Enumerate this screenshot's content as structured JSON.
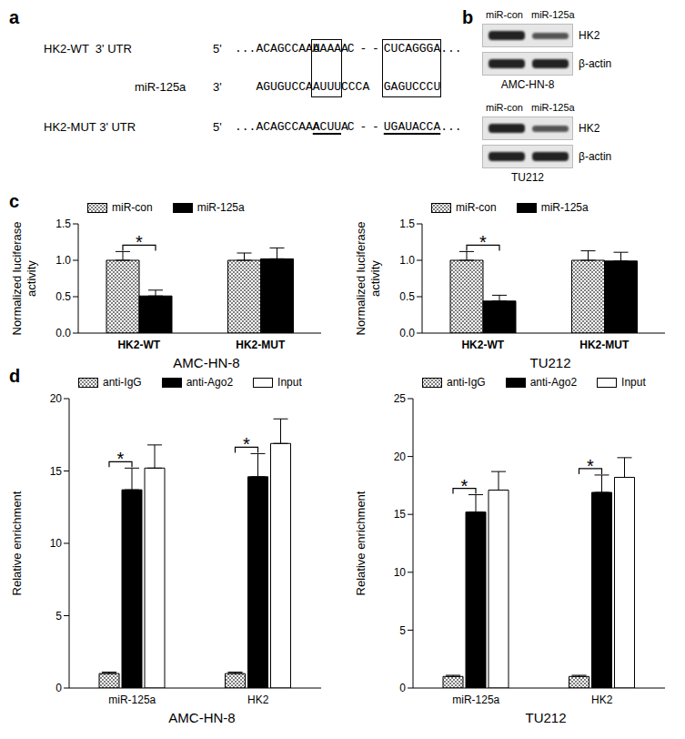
{
  "panel_labels": [
    "a",
    "b",
    "c",
    "d"
  ],
  "panel_a": {
    "rows": [
      {
        "label": "HK2-WT  3' UTR",
        "end": "5'",
        "segments": [
          {
            "text": "...ACAGCCAAA"
          },
          {
            "text": "UAAA",
            "boxed": true
          },
          {
            "text": "AC - -"
          },
          {
            "text": "CUCAGGGA",
            "boxed": true
          },
          {
            "text": "..."
          }
        ]
      },
      {
        "label": "miR-125a",
        "end": "3'",
        "segments": [
          {
            "text": "AGUGUCCA"
          },
          {
            "text": "AUUU",
            "boxed": true
          },
          {
            "text": "CCCA"
          },
          {
            "text": "GAGUCCCU",
            "boxed": true
          }
        ]
      },
      {
        "label": "HK2-MUT 3' UTR",
        "end": "5'",
        "segments": [
          {
            "text": "...ACAGCCAAA"
          },
          {
            "text": "ACUU",
            "underlined": true
          },
          {
            "text": "AC - -"
          },
          {
            "text": "UGAUACCA",
            "underlined": true
          },
          {
            "text": "..."
          }
        ]
      }
    ]
  },
  "panel_b": {
    "lanes": [
      "miR-con",
      "miR-125a"
    ],
    "blots": [
      {
        "cell_line": "AMC-HN-8",
        "bands": [
          "HK2",
          "β-actin"
        ]
      },
      {
        "cell_line": "TU212",
        "bands": [
          "HK2",
          "β-actin"
        ]
      }
    ]
  },
  "chart_data": [
    {
      "type": "bar",
      "title": "AMC-HN-8",
      "y_label": "Normalized luciferase activity",
      "categories": [
        "HK2-WT",
        "HK2-MUT"
      ],
      "series": [
        {
          "name": "miR-con",
          "color": "#7f7f7f",
          "values": [
            1.0,
            1.0
          ],
          "errors": [
            0.12,
            0.1
          ]
        },
        {
          "name": "miR-125a",
          "color": "#000000",
          "values": [
            0.51,
            1.02
          ],
          "errors": [
            0.08,
            0.15
          ]
        }
      ],
      "ylim": [
        0,
        1.5
      ],
      "yticks": [
        {
          "value": 0,
          "label": "0.0"
        },
        {
          "value": 0.5,
          "label": "0.5"
        },
        {
          "value": 1,
          "label": "1.0"
        },
        {
          "value": 1.5,
          "label": "1.5"
        }
      ],
      "legend": "top",
      "grid": false,
      "annotations": [
        {
          "text": "*",
          "category": "HK2-WT"
        }
      ]
    },
    {
      "type": "bar",
      "title": "TU212",
      "y_label": "Normalized luciferase activity",
      "categories": [
        "HK2-WT",
        "HK2-MUT"
      ],
      "series": [
        {
          "name": "miR-con",
          "color": "#7f7f7f",
          "values": [
            1.0,
            1.0
          ],
          "errors": [
            0.12,
            0.13
          ]
        },
        {
          "name": "miR-125a",
          "color": "#000000",
          "values": [
            0.44,
            0.99
          ],
          "errors": [
            0.08,
            0.12
          ]
        }
      ],
      "ylim": [
        0,
        1.5
      ],
      "yticks": [
        {
          "value": 0,
          "label": "0.0"
        },
        {
          "value": 0.5,
          "label": "0.5"
        },
        {
          "value": 1,
          "label": "1.0"
        },
        {
          "value": 1.5,
          "label": "1.5"
        }
      ],
      "legend": "top",
      "grid": false,
      "annotations": [
        {
          "text": "*",
          "category": "HK2-WT"
        }
      ]
    },
    {
      "type": "bar",
      "title": "AMC-HN-8",
      "y_label": "Relative enrichment",
      "categories": [
        "miR-125a",
        "HK2"
      ],
      "series": [
        {
          "name": "anti-IgG",
          "color": "#7f7f7f",
          "values": [
            1.0,
            1.0
          ],
          "errors": [
            0.1,
            0.1
          ]
        },
        {
          "name": "anti-Ago2",
          "color": "#000000",
          "values": [
            13.7,
            14.6
          ],
          "errors": [
            1.5,
            1.6
          ]
        },
        {
          "name": "Input",
          "color": "#ffffff",
          "values": [
            15.2,
            16.9
          ],
          "errors": [
            1.6,
            1.7
          ]
        }
      ],
      "ylim": [
        0,
        20
      ],
      "yticks": [
        0,
        5,
        10,
        15,
        20
      ],
      "legend": "top",
      "grid": false,
      "annotations": [
        {
          "text": "*",
          "category": "miR-125a"
        },
        {
          "text": "*",
          "category": "HK2"
        }
      ]
    },
    {
      "type": "bar",
      "title": "TU212",
      "y_label": "Relative enrichment",
      "categories": [
        "miR-125a",
        "HK2"
      ],
      "series": [
        {
          "name": "anti-IgG",
          "color": "#7f7f7f",
          "values": [
            1.0,
            1.0
          ],
          "errors": [
            0.1,
            0.1
          ]
        },
        {
          "name": "anti-Ago2",
          "color": "#000000",
          "values": [
            15.2,
            16.9
          ],
          "errors": [
            1.5,
            1.5
          ]
        },
        {
          "name": "Input",
          "color": "#ffffff",
          "values": [
            17.1,
            18.2
          ],
          "errors": [
            1.6,
            1.7
          ]
        }
      ],
      "ylim": [
        0,
        25
      ],
      "yticks": [
        0,
        5,
        10,
        15,
        20,
        25
      ],
      "legend": "top",
      "grid": false,
      "annotations": [
        {
          "text": "*",
          "category": "miR-125a"
        },
        {
          "text": "*",
          "category": "HK2"
        }
      ]
    }
  ]
}
